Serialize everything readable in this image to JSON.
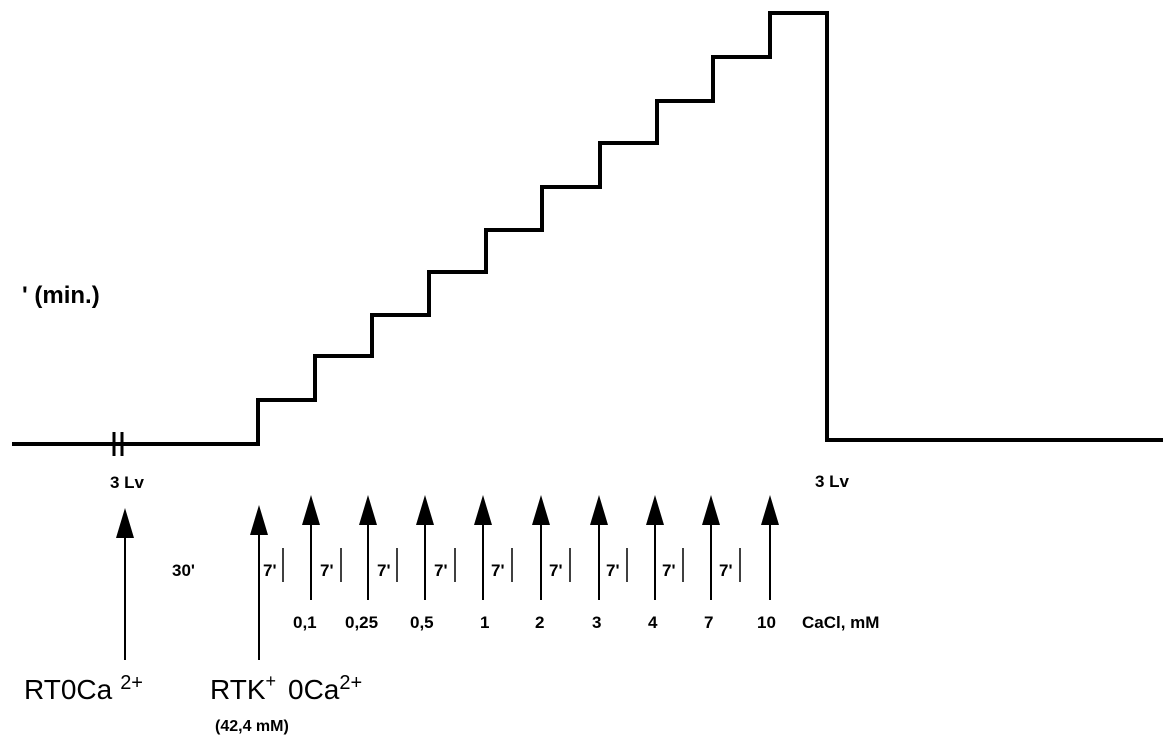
{
  "y_label": "' (min.)",
  "trace_labels": {
    "left_lv": "3 Lv",
    "right_lv": "3 Lv"
  },
  "intervals": {
    "first": "30'",
    "step": "7'"
  },
  "concentrations": [
    "0,1",
    "0,25",
    "0,5",
    "1",
    "2",
    "3",
    "4",
    "7",
    "10"
  ],
  "unit_label": "CaCl, mM",
  "solutions": {
    "first": {
      "name": "RT0Ca",
      "sup": "2+"
    },
    "second": {
      "name": "RTK",
      "sup": "+",
      "name2": "0Ca",
      "sup2": "2+",
      "note": "(42,4 mM)"
    }
  }
}
